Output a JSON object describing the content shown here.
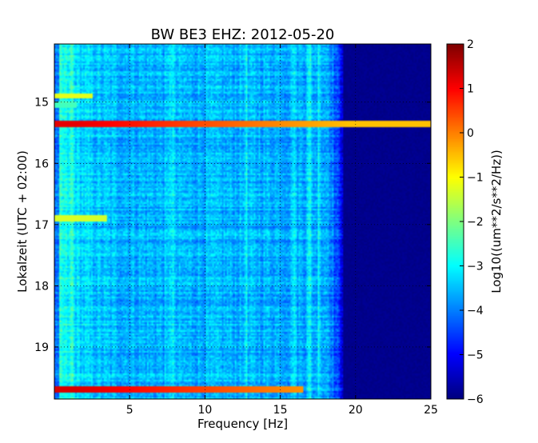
{
  "chart_data": {
    "type": "heatmap",
    "title": "BW BE3 EHZ: 2012-05-20",
    "xlabel": "Frequency [Hz]",
    "ylabel": "Lokalzeit (UTC + 02:00)",
    "xlim": [
      0,
      25
    ],
    "ylim": [
      19.85,
      14.05
    ],
    "x_ticks": [
      5,
      10,
      15,
      20,
      25
    ],
    "y_ticks": [
      15,
      16,
      17,
      18,
      19
    ],
    "grid": true,
    "colormap": "jet",
    "colorbar": {
      "label": "Log10((um**2/s**2/Hz))",
      "range": [
        -6,
        2
      ],
      "ticks": [
        -6,
        -5,
        -4,
        -3,
        -2,
        -1,
        0,
        1,
        2
      ]
    },
    "spectrogram": {
      "background_level": -3.6,
      "noise_amplitude": 0.35,
      "low_frequency_rise": 1.0,
      "cutoff_hz": 18.2,
      "level_above_cutoff": -5.9,
      "bands": [
        {
          "time": 15.35,
          "level": 1.2,
          "extends_to_hz": 25
        },
        {
          "time": 14.9,
          "level": -1.2,
          "extends_to_hz": 2.5
        },
        {
          "time": 16.9,
          "level": -1.3,
          "extends_to_hz": 3.5
        },
        {
          "time": 19.7,
          "level": 1.3,
          "extends_to_hz": 16.5
        },
        {
          "time": 15.05,
          "level": -2.5,
          "extends_to_hz": 1.5
        }
      ],
      "vertical_lines_hz": [
        1.2,
        7.8,
        12.7,
        15.9,
        16.9,
        17.6
      ],
      "colors": {
        "low": "#00007f",
        "mid": "#7fff7f",
        "high": "#7f0000"
      }
    }
  }
}
